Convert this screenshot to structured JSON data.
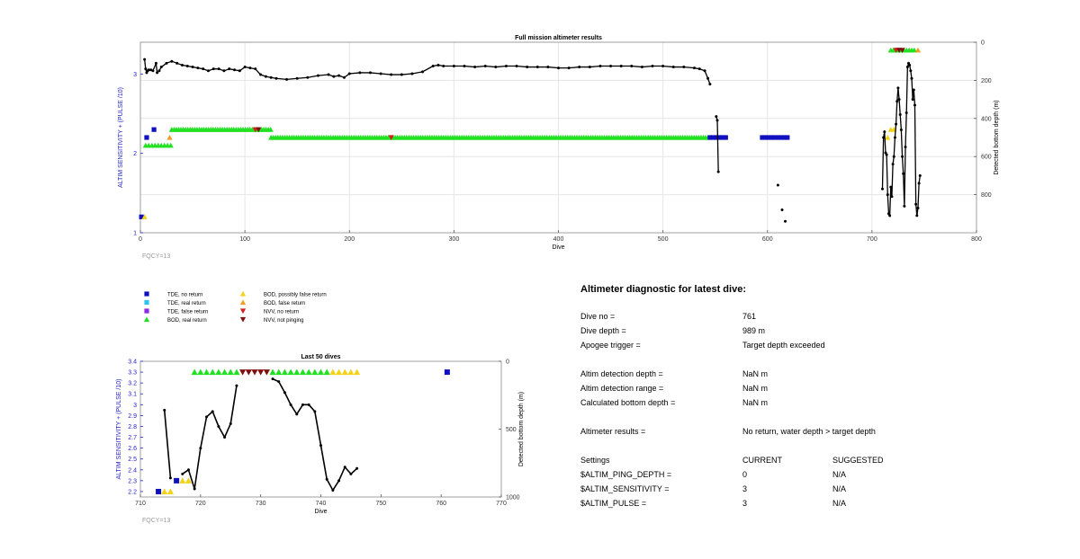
{
  "colors": {
    "axis_left": "#2323c8",
    "grid": "#e6e6e6",
    "tde_no_return": "#1010c0",
    "tde_real_return": "#2ec4f0",
    "tde_false_return": "#8a2be2",
    "bod_real_return": "#22e022",
    "bod_possibly_false": "#f2d31a",
    "bod_false_return": "#f0a020",
    "nvv_no_return": "#d42020",
    "nvv_not_pinging": "#801010",
    "depth_line": "#000000"
  },
  "legend": [
    {
      "label": "TDE, no return",
      "marker": "square",
      "color": "#1010c0"
    },
    {
      "label": "TDE, real return",
      "marker": "square",
      "color": "#2ec4f0"
    },
    {
      "label": "TDE, false return",
      "marker": "square",
      "color": "#8a2be2"
    },
    {
      "label": "BOD, real return",
      "marker": "triangle-up",
      "color": "#22e022"
    },
    {
      "label": "BOD, possibly false return",
      "marker": "triangle-up",
      "color": "#f2d31a"
    },
    {
      "label": "BOD, false return",
      "marker": "triangle-up",
      "color": "#f0a020"
    },
    {
      "label": "NVV, no return",
      "marker": "triangle-down",
      "color": "#d42020"
    },
    {
      "label": "NVV, not pinging",
      "marker": "triangle-down",
      "color": "#801010"
    }
  ],
  "chart_data": [
    {
      "type": "scatter",
      "title": "Full mission altimeter results",
      "xlabel": "Dive",
      "ylabel_left": "ALTIM SENSITIVITY + (PULSE /10)",
      "ylabel_right": "Detected bottom depth (m)",
      "footnote": "FQCY=13",
      "xlim": [
        0,
        800
      ],
      "ylim_left": [
        1,
        3.4
      ],
      "ylim_right": [
        0,
        1000
      ],
      "y_right_reversed": true,
      "xticks": [
        0,
        100,
        200,
        300,
        400,
        500,
        600,
        700,
        800
      ],
      "yticks_left": [
        1,
        2,
        3
      ],
      "yticks_right": [
        0,
        200,
        400,
        600,
        800
      ],
      "grid": true,
      "setting_markers": [
        {
          "series": "TDE, no return",
          "points": [
            [
              1,
              1.2
            ],
            [
              6,
              2.2
            ],
            [
              13,
              2.3
            ],
            [
              545,
              2.2
            ],
            [
              548,
              2.2
            ],
            [
              551,
              2.2
            ],
            [
              554,
              2.2
            ],
            [
              557,
              2.2
            ],
            [
              560,
              2.2
            ],
            [
              595,
              2.2
            ],
            [
              598,
              2.2
            ],
            [
              601,
              2.2
            ],
            [
              604,
              2.2
            ],
            [
              607,
              2.2
            ],
            [
              610,
              2.2
            ],
            [
              613,
              2.2
            ],
            [
              616,
              2.2
            ],
            [
              619,
              2.2
            ]
          ]
        },
        {
          "series": "BOD, possibly false return",
          "points": [
            [
              4,
              1.2
            ],
            [
              715,
              2.2
            ],
            [
              718,
              2.3
            ],
            [
              721,
              2.3
            ]
          ]
        },
        {
          "series": "BOD, false return",
          "points": [
            [
              28,
              2.2
            ],
            [
              744,
              3.3
            ]
          ]
        },
        {
          "series": "NVV, no return",
          "points": [
            [
              110,
              2.3
            ],
            [
              240,
              2.2
            ],
            [
              723,
              3.3
            ]
          ]
        },
        {
          "series": "NVV, not pinging",
          "points": [
            [
              113,
              2.3
            ],
            [
              726,
              3.3
            ],
            [
              729,
              3.3
            ]
          ]
        }
      ],
      "bod_real_runs": [
        {
          "x_from": 5,
          "x_to": 30,
          "step": 3,
          "y": 2.1
        },
        {
          "x_from": 30,
          "x_to": 125,
          "step": 2.2,
          "y": 2.3
        },
        {
          "x_from": 125,
          "x_to": 545,
          "step": 2.2,
          "y": 2.2
        },
        {
          "x_from": 718,
          "x_to": 742,
          "step": 2.5,
          "y": 3.3
        }
      ],
      "depth_segments": [
        {
          "x": [
            4,
            5,
            6,
            7,
            8,
            10,
            12,
            15,
            16,
            18,
            20,
            25,
            30,
            35,
            40,
            45,
            50,
            55,
            60,
            65,
            70,
            75,
            80,
            85,
            90,
            95,
            100,
            105,
            110,
            115,
            120,
            125,
            130,
            140,
            150,
            160,
            170,
            180,
            185,
            190,
            195,
            200,
            210,
            220,
            230,
            240,
            250,
            260,
            270,
            280,
            285,
            290,
            300,
            310,
            320,
            330,
            340,
            350,
            360,
            370,
            380,
            390,
            400,
            410,
            420,
            430,
            440,
            450,
            460,
            470,
            480,
            490,
            500,
            510,
            520,
            530,
            535,
            540,
            543,
            545
          ],
          "y": [
            90,
            140,
            160,
            150,
            145,
            145,
            150,
            110,
            160,
            150,
            130,
            110,
            100,
            110,
            120,
            125,
            130,
            135,
            140,
            150,
            140,
            140,
            150,
            140,
            145,
            150,
            130,
            135,
            140,
            170,
            180,
            185,
            190,
            195,
            190,
            185,
            175,
            170,
            180,
            175,
            185,
            165,
            160,
            160,
            165,
            170,
            170,
            165,
            155,
            125,
            120,
            125,
            125,
            125,
            130,
            125,
            130,
            125,
            125,
            130,
            130,
            130,
            135,
            135,
            130,
            130,
            125,
            125,
            125,
            125,
            130,
            125,
            125,
            130,
            130,
            135,
            140,
            150,
            190,
            220
          ]
        },
        {
          "x": [
            551,
            552,
            553
          ],
          "y": [
            390,
            410,
            680
          ]
        },
        {
          "x": [
            610
          ],
          "y": [
            750
          ]
        },
        {
          "x": [
            614
          ],
          "y": [
            880
          ]
        },
        {
          "x": [
            617
          ],
          "y": [
            940
          ]
        },
        {
          "x": [
            710,
            711,
            712,
            713,
            714,
            715,
            716,
            717,
            718,
            719,
            720,
            721,
            722,
            723,
            724,
            725,
            726,
            727,
            728,
            729,
            730,
            731,
            732,
            733,
            734,
            735,
            736,
            737,
            738,
            739,
            740,
            741,
            742,
            743,
            744,
            745,
            746
          ],
          "y": [
            770,
            500,
            470,
            580,
            590,
            800,
            900,
            910,
            760,
            810,
            640,
            600,
            500,
            430,
            310,
            240,
            300,
            380,
            460,
            600,
            690,
            860,
            550,
            370,
            130,
            110,
            120,
            150,
            190,
            300,
            250,
            330,
            850,
            910,
            870,
            740,
            700
          ]
        }
      ]
    },
    {
      "type": "scatter",
      "title": "Last 50 dives",
      "xlabel": "Dive",
      "ylabel_left": "ALTIM SENSITIVITY + (PULSE /10)",
      "ylabel_right": "Detected bottom depth (m)",
      "footnote": "FQCY=13",
      "xlim": [
        710,
        770
      ],
      "ylim_left": [
        2.15,
        3.4
      ],
      "ylim_right": [
        0,
        1000
      ],
      "y_right_reversed": true,
      "xticks": [
        710,
        720,
        730,
        740,
        750,
        760,
        770
      ],
      "yticks_left": [
        2.2,
        2.3,
        2.4,
        2.5,
        2.6,
        2.7,
        2.8,
        2.9,
        3.0,
        3.1,
        3.2,
        3.3,
        3.4
      ],
      "yticks_left_labels": [
        "2.2",
        "2.3",
        "2.4",
        "2.5",
        "2.6",
        "2.7",
        "2.8",
        "2.9",
        "3",
        "3.1",
        "3.2",
        "3.3",
        "3.4"
      ],
      "yticks_right": [
        0,
        500,
        1000
      ],
      "grid": false,
      "setting_markers": [
        {
          "series": "TDE, no return",
          "points": [
            [
              713,
              2.2
            ],
            [
              716,
              2.3
            ],
            [
              761,
              3.3
            ]
          ]
        },
        {
          "series": "BOD, possibly false return",
          "points": [
            [
              714,
              2.2
            ],
            [
              715,
              2.2
            ],
            [
              717,
              2.3
            ],
            [
              718,
              2.3
            ],
            [
              742,
              3.3
            ],
            [
              743,
              3.3
            ],
            [
              744,
              3.3
            ],
            [
              745,
              3.3
            ],
            [
              746,
              3.3
            ]
          ]
        },
        {
          "series": "BOD, real return",
          "points": [
            [
              719,
              3.3
            ],
            [
              720,
              3.3
            ],
            [
              721,
              3.3
            ],
            [
              722,
              3.3
            ],
            [
              723,
              3.3
            ],
            [
              724,
              3.3
            ],
            [
              725,
              3.3
            ],
            [
              726,
              3.3
            ],
            [
              732,
              3.3
            ],
            [
              733,
              3.3
            ],
            [
              734,
              3.3
            ],
            [
              735,
              3.3
            ],
            [
              736,
              3.3
            ],
            [
              737,
              3.3
            ],
            [
              738,
              3.3
            ],
            [
              739,
              3.3
            ],
            [
              740,
              3.3
            ],
            [
              741,
              3.3
            ]
          ]
        },
        {
          "series": "NVV, not pinging",
          "points": [
            [
              727,
              3.3
            ],
            [
              728,
              3.3
            ],
            [
              729,
              3.3
            ],
            [
              730,
              3.3
            ],
            [
              731,
              3.3
            ]
          ]
        }
      ],
      "depth_segments": [
        {
          "x": [
            714,
            715
          ],
          "y": [
            360,
            860
          ]
        },
        {
          "x": [
            717,
            718,
            719,
            720,
            721,
            722,
            723,
            724,
            725,
            726
          ],
          "y": [
            830,
            800,
            940,
            640,
            410,
            370,
            480,
            560,
            460,
            180
          ]
        },
        {
          "x": [
            732,
            733,
            734,
            735,
            736,
            737,
            738,
            739,
            740,
            741,
            742,
            743,
            744,
            745,
            746
          ],
          "y": [
            130,
            150,
            230,
            320,
            390,
            320,
            320,
            370,
            620,
            870,
            950,
            880,
            780,
            830,
            790
          ]
        }
      ]
    }
  ],
  "diagnostic": {
    "title": "Altimeter diagnostic for latest dive:",
    "rows": [
      {
        "label": "Dive no =",
        "value": "761"
      },
      {
        "label": "Dive depth =",
        "value": "989 m"
      },
      {
        "label": "Apogee trigger =",
        "value": "Target depth exceeded"
      },
      {
        "label": "Altim detection depth =",
        "value": "NaN m"
      },
      {
        "label": "Altim detection range =",
        "value": "NaN m"
      },
      {
        "label": "Calculated bottom depth =",
        "value": "NaN m"
      },
      {
        "label": "Altimeter results =",
        "value": "No return, water depth > target depth"
      }
    ],
    "settings_header": {
      "label": "Settings",
      "current": "CURRENT",
      "suggested": "SUGGESTED"
    },
    "settings": [
      {
        "name": "$ALTIM_PING_DEPTH =",
        "current": "0",
        "suggested": "N/A"
      },
      {
        "name": "$ALTIM_SENSITIVITY =",
        "current": "3",
        "suggested": "N/A"
      },
      {
        "name": "$ALTIM_PULSE =",
        "current": "3",
        "suggested": "N/A"
      }
    ]
  }
}
